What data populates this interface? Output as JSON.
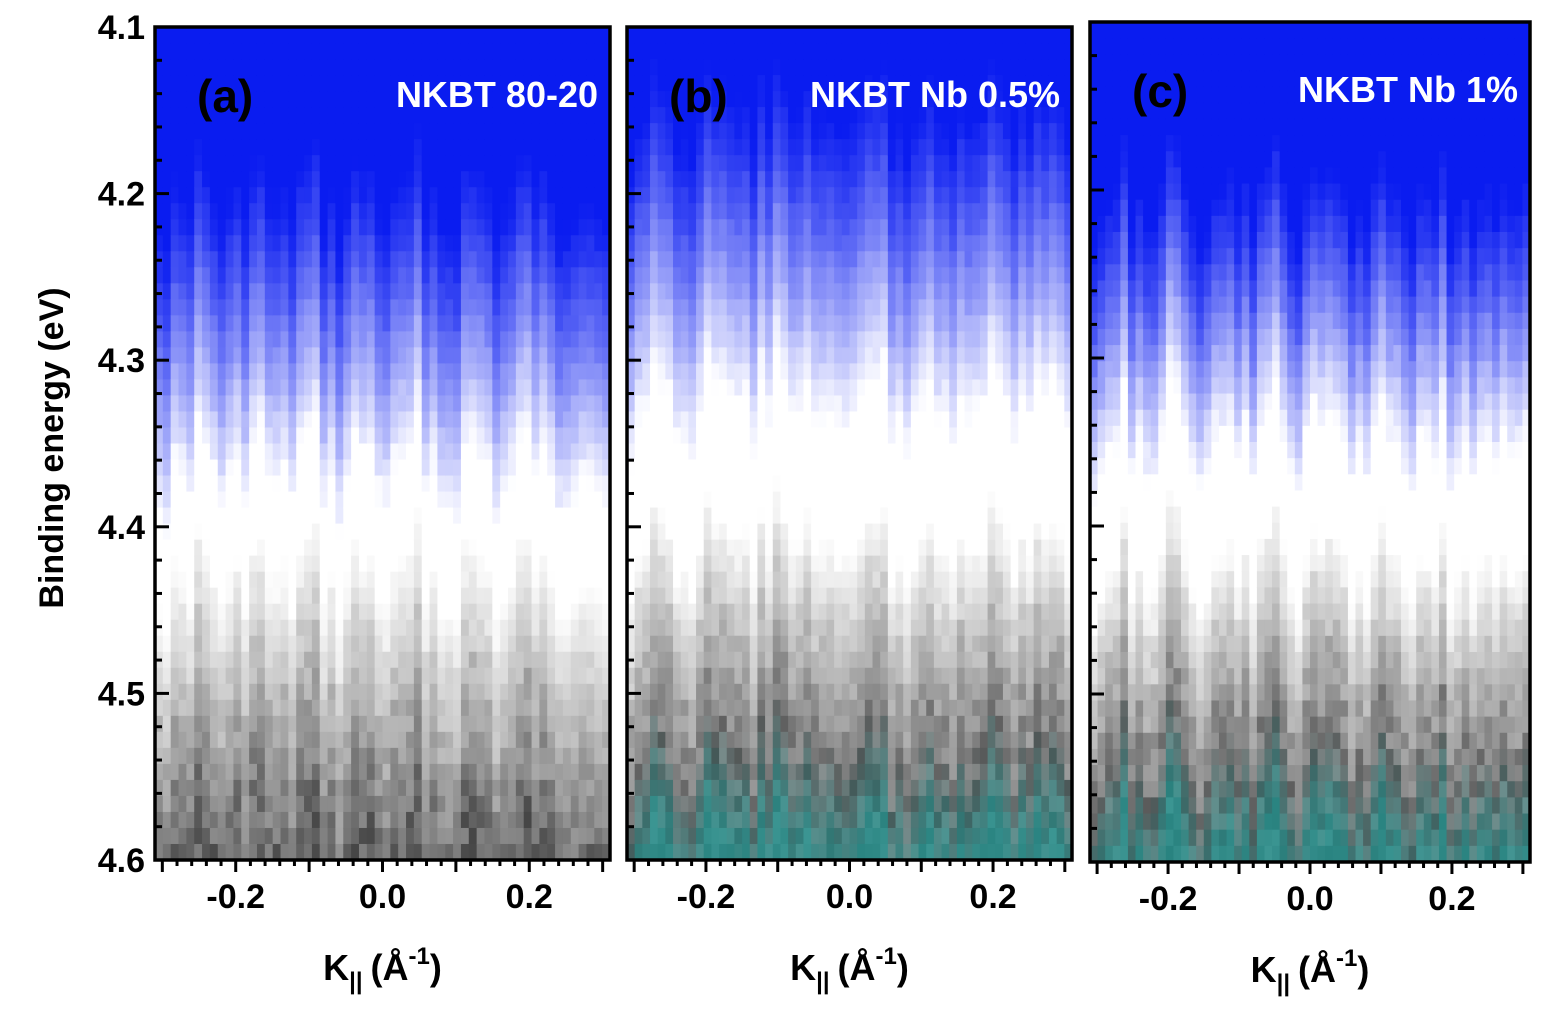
{
  "chart_data": [
    {
      "type": "heatmap",
      "panel_label": "(a)",
      "title": "NKBT 80-20",
      "ylabel": "Binding energy (eV)",
      "xlabel_base": "K",
      "xlabel_sub": "||",
      "xlabel_unit_open": "(Å",
      "xlabel_sup": "-1",
      "xlabel_unit_close": ")",
      "xlim": [
        -0.31,
        0.31
      ],
      "ylim": [
        4.1,
        4.6
      ],
      "y_inverted": true,
      "xticks": [
        -0.2,
        0.0,
        0.2
      ],
      "xtick_labels": [
        "-0.2",
        "0.0",
        "0.2"
      ],
      "yticks": [
        4.1,
        4.2,
        4.3,
        4.4,
        4.5,
        4.6
      ],
      "ytick_labels": [
        "4.1",
        "4.2",
        "4.3",
        "4.4",
        "4.5",
        "4.6"
      ],
      "band_profile": {
        "blue_full_until": 4.2,
        "blue_fade_end": 4.37,
        "white_until": 4.43,
        "gray_max_at": 4.6,
        "gray_peak_intensity": 0.75,
        "teal_start": 4.7
      }
    },
    {
      "type": "heatmap",
      "panel_label": "(b)",
      "title": "NKBT Nb 0.5%",
      "xlabel_base": "K",
      "xlabel_sub": "||",
      "xlabel_unit_open": "(Å",
      "xlabel_sup": "-1",
      "xlabel_unit_close": ")",
      "xlim": [
        -0.31,
        0.31
      ],
      "ylim": [
        4.1,
        4.6
      ],
      "y_inverted": true,
      "xticks": [
        -0.2,
        0.0,
        0.2
      ],
      "xtick_labels": [
        "-0.2",
        "0.0",
        "0.2"
      ],
      "band_profile": {
        "blue_full_until": 4.15,
        "blue_fade_end": 4.33,
        "white_until": 4.41,
        "gray_max_at": 4.55,
        "gray_peak_intensity": 0.72,
        "teal_start": 4.54
      }
    },
    {
      "type": "heatmap",
      "panel_label": "(c)",
      "title": "NKBT Nb 1%",
      "xlabel_base": "K",
      "xlabel_sub": "||",
      "xlabel_unit_open": "(Å",
      "xlabel_sup": "-1",
      "xlabel_unit_close": ")",
      "xlim": [
        -0.31,
        0.31
      ],
      "ylim": [
        4.1,
        4.6
      ],
      "y_inverted": true,
      "xticks": [
        -0.2,
        0.0,
        0.2
      ],
      "xtick_labels": [
        "-0.2",
        "0.0",
        "0.2"
      ],
      "band_profile": {
        "blue_full_until": 4.2,
        "blue_fade_end": 4.35,
        "white_until": 4.42,
        "gray_max_at": 4.55,
        "gray_peak_intensity": 0.72,
        "teal_start": 4.54
      }
    }
  ],
  "colors": {
    "blue": "#0a1cf0",
    "gray": "#5a5a5a",
    "teal": "#1a9a96",
    "axis": "#000000"
  }
}
